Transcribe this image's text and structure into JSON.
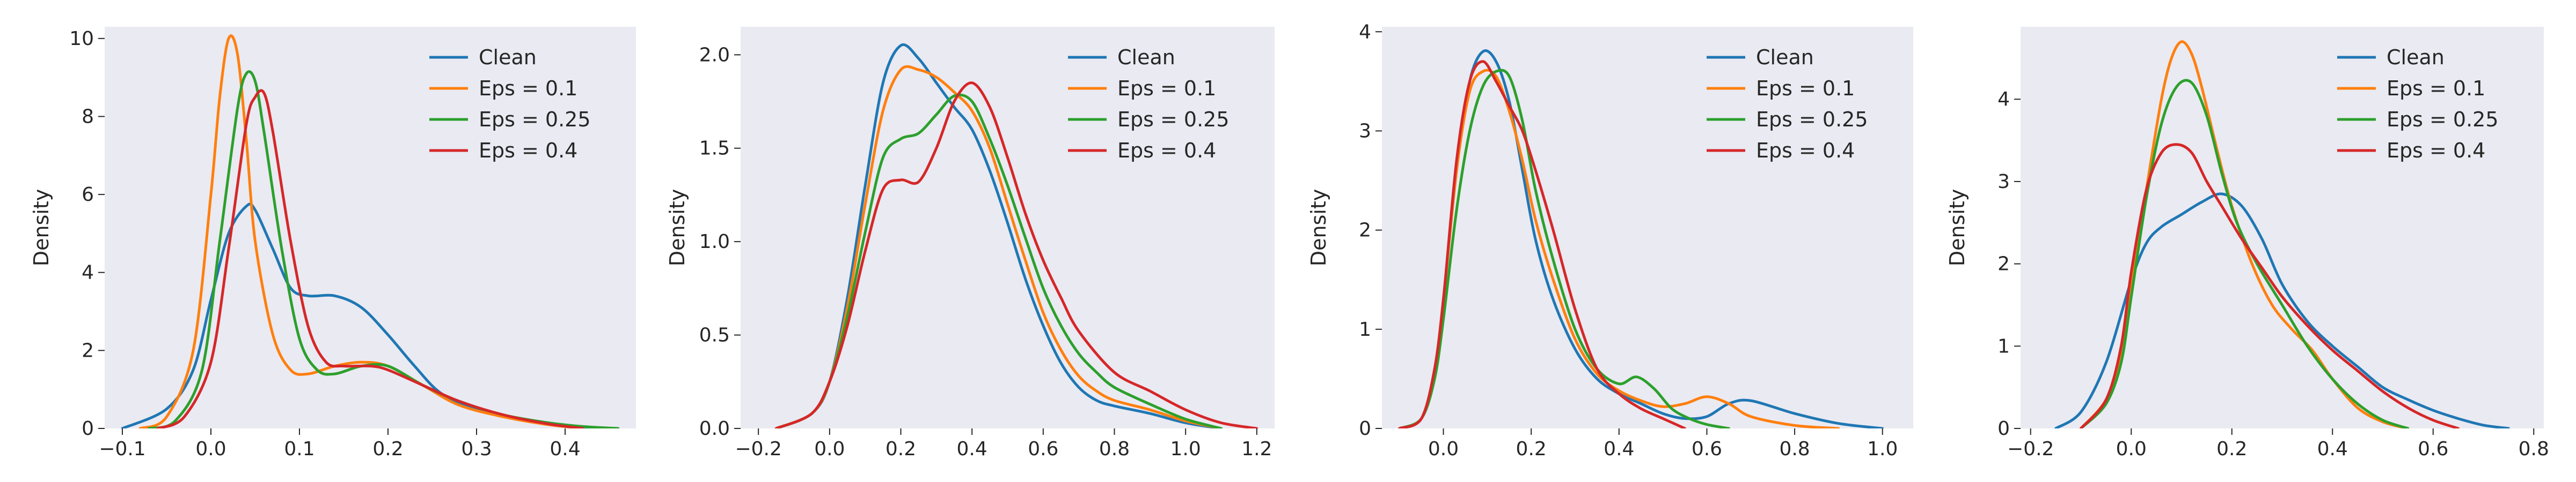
{
  "chart_data": [
    {
      "type": "line",
      "xlabel": "",
      "ylabel": "Density",
      "xlim": [
        -0.12,
        0.48
      ],
      "ylim": [
        0,
        10.3
      ],
      "xticks": [
        -0.1,
        0.0,
        0.1,
        0.2,
        0.3,
        0.4
      ],
      "xtick_labels": [
        "−0.1",
        "0.0",
        "0.1",
        "0.2",
        "0.3",
        "0.4"
      ],
      "yticks": [
        0,
        2,
        4,
        6,
        8,
        10
      ],
      "ytick_labels": [
        "0",
        "2",
        "4",
        "6",
        "8",
        "10"
      ],
      "grid": false,
      "legend": "top-right",
      "series": [
        {
          "name": "Clean",
          "color": "#1f77b4",
          "x": [
            -0.1,
            -0.05,
            -0.02,
            0.0,
            0.02,
            0.04,
            0.05,
            0.07,
            0.09,
            0.11,
            0.14,
            0.17,
            0.2,
            0.23,
            0.26,
            0.3,
            0.35,
            0.4,
            0.43
          ],
          "y": [
            0,
            0.5,
            1.5,
            3.3,
            5.0,
            5.7,
            5.6,
            4.6,
            3.6,
            3.4,
            3.4,
            3.1,
            2.4,
            1.6,
            0.9,
            0.5,
            0.25,
            0.05,
            0
          ]
        },
        {
          "name": "Eps = 0.1",
          "color": "#ff7f0e",
          "x": [
            -0.08,
            -0.05,
            -0.02,
            0.0,
            0.01,
            0.02,
            0.03,
            0.04,
            0.05,
            0.07,
            0.09,
            0.11,
            0.14,
            0.17,
            0.2,
            0.24,
            0.28,
            0.33,
            0.38,
            0.42
          ],
          "y": [
            0,
            0.3,
            2.0,
            6.0,
            8.5,
            10.0,
            9.6,
            7.4,
            4.8,
            2.4,
            1.5,
            1.4,
            1.6,
            1.7,
            1.6,
            1.1,
            0.6,
            0.3,
            0.1,
            0
          ]
        },
        {
          "name": "Eps = 0.25",
          "color": "#2ca02c",
          "x": [
            -0.07,
            -0.04,
            -0.01,
            0.01,
            0.03,
            0.04,
            0.05,
            0.06,
            0.08,
            0.1,
            0.12,
            0.14,
            0.17,
            0.2,
            0.24,
            0.28,
            0.33,
            0.38,
            0.42,
            0.46
          ],
          "y": [
            0,
            0.2,
            1.5,
            4.8,
            8.2,
            9.1,
            8.9,
            7.6,
            4.6,
            2.3,
            1.5,
            1.4,
            1.6,
            1.6,
            1.1,
            0.7,
            0.35,
            0.15,
            0.05,
            0
          ]
        },
        {
          "name": "Eps = 0.4",
          "color": "#d62728",
          "x": [
            -0.06,
            -0.03,
            0.0,
            0.02,
            0.04,
            0.05,
            0.06,
            0.07,
            0.09,
            0.11,
            0.13,
            0.15,
            0.18,
            0.2,
            0.24,
            0.28,
            0.33,
            0.38,
            0.42
          ],
          "y": [
            0,
            0.3,
            1.7,
            4.6,
            7.8,
            8.5,
            8.6,
            7.6,
            4.8,
            2.6,
            1.7,
            1.6,
            1.6,
            1.5,
            1.1,
            0.7,
            0.35,
            0.12,
            0
          ]
        }
      ]
    },
    {
      "type": "line",
      "xlabel": "",
      "ylabel": "Density",
      "xlim": [
        -0.25,
        1.25
      ],
      "ylim": [
        0,
        2.15
      ],
      "xticks": [
        -0.2,
        0.0,
        0.2,
        0.4,
        0.6,
        0.8,
        1.0,
        1.2
      ],
      "xtick_labels": [
        "−0.2",
        "0.0",
        "0.2",
        "0.4",
        "0.6",
        "0.8",
        "1.0",
        "1.2"
      ],
      "yticks": [
        0.0,
        0.5,
        1.0,
        1.5,
        2.0
      ],
      "ytick_labels": [
        "0.0",
        "0.5",
        "1.0",
        "1.5",
        "2.0"
      ],
      "grid": false,
      "legend": "top-right",
      "series": [
        {
          "name": "Clean",
          "color": "#1f77b4",
          "x": [
            -0.15,
            -0.05,
            0.0,
            0.05,
            0.1,
            0.15,
            0.2,
            0.25,
            0.3,
            0.35,
            0.4,
            0.45,
            0.5,
            0.55,
            0.6,
            0.65,
            0.7,
            0.75,
            0.8,
            0.9,
            1.0,
            1.1
          ],
          "y": [
            0,
            0.08,
            0.25,
            0.7,
            1.3,
            1.85,
            2.05,
            1.98,
            1.85,
            1.72,
            1.6,
            1.38,
            1.1,
            0.8,
            0.55,
            0.35,
            0.22,
            0.15,
            0.12,
            0.08,
            0.03,
            0
          ]
        },
        {
          "name": "Eps = 0.1",
          "color": "#ff7f0e",
          "x": [
            -0.15,
            -0.05,
            0.0,
            0.05,
            0.1,
            0.15,
            0.2,
            0.25,
            0.3,
            0.35,
            0.4,
            0.45,
            0.5,
            0.55,
            0.6,
            0.65,
            0.7,
            0.75,
            0.8,
            0.9,
            1.0,
            1.1
          ],
          "y": [
            0,
            0.08,
            0.25,
            0.65,
            1.2,
            1.7,
            1.92,
            1.92,
            1.88,
            1.8,
            1.7,
            1.5,
            1.2,
            0.9,
            0.62,
            0.42,
            0.28,
            0.2,
            0.15,
            0.1,
            0.04,
            0
          ]
        },
        {
          "name": "Eps = 0.25",
          "color": "#2ca02c",
          "x": [
            -0.15,
            -0.05,
            0.0,
            0.05,
            0.1,
            0.15,
            0.2,
            0.25,
            0.3,
            0.35,
            0.4,
            0.45,
            0.5,
            0.55,
            0.6,
            0.65,
            0.7,
            0.75,
            0.8,
            0.9,
            1.0,
            1.1
          ],
          "y": [
            0,
            0.08,
            0.25,
            0.6,
            1.05,
            1.45,
            1.55,
            1.58,
            1.68,
            1.78,
            1.75,
            1.55,
            1.3,
            1.02,
            0.75,
            0.55,
            0.4,
            0.3,
            0.22,
            0.13,
            0.05,
            0
          ]
        },
        {
          "name": "Eps = 0.4",
          "color": "#d62728",
          "x": [
            -0.15,
            -0.05,
            0.0,
            0.05,
            0.1,
            0.15,
            0.2,
            0.25,
            0.3,
            0.35,
            0.4,
            0.45,
            0.5,
            0.55,
            0.6,
            0.65,
            0.7,
            0.8,
            0.9,
            1.0,
            1.1,
            1.2
          ],
          "y": [
            0,
            0.08,
            0.25,
            0.55,
            0.95,
            1.28,
            1.33,
            1.32,
            1.5,
            1.75,
            1.85,
            1.72,
            1.45,
            1.15,
            0.9,
            0.7,
            0.52,
            0.3,
            0.2,
            0.1,
            0.03,
            0
          ]
        }
      ]
    },
    {
      "type": "line",
      "xlabel": "",
      "ylabel": "Density",
      "xlim": [
        -0.14,
        1.07
      ],
      "ylim": [
        0,
        4.05
      ],
      "xticks": [
        0.0,
        0.2,
        0.4,
        0.6,
        0.8,
        1.0
      ],
      "xtick_labels": [
        "0.0",
        "0.2",
        "0.4",
        "0.6",
        "0.8",
        "1.0"
      ],
      "yticks": [
        0,
        1,
        2,
        3,
        4
      ],
      "ytick_labels": [
        "0",
        "1",
        "2",
        "3",
        "4"
      ],
      "grid": false,
      "legend": "top-right",
      "series": [
        {
          "name": "Clean",
          "color": "#1f77b4",
          "x": [
            -0.1,
            -0.05,
            -0.02,
            0.0,
            0.03,
            0.06,
            0.09,
            0.12,
            0.15,
            0.18,
            0.21,
            0.25,
            0.3,
            0.35,
            0.4,
            0.45,
            0.5,
            0.55,
            0.6,
            0.65,
            0.7,
            0.8,
            0.9,
            1.0
          ],
          "y": [
            0,
            0.1,
            0.6,
            1.3,
            2.6,
            3.5,
            3.8,
            3.7,
            3.3,
            2.6,
            1.9,
            1.3,
            0.8,
            0.5,
            0.35,
            0.25,
            0.15,
            0.1,
            0.12,
            0.25,
            0.28,
            0.15,
            0.05,
            0
          ]
        },
        {
          "name": "Eps = 0.1",
          "color": "#ff7f0e",
          "x": [
            -0.1,
            -0.05,
            -0.02,
            0.0,
            0.03,
            0.06,
            0.09,
            0.12,
            0.15,
            0.18,
            0.21,
            0.25,
            0.3,
            0.35,
            0.4,
            0.45,
            0.5,
            0.55,
            0.6,
            0.65,
            0.7,
            0.8,
            0.9
          ],
          "y": [
            0,
            0.1,
            0.6,
            1.3,
            2.6,
            3.4,
            3.6,
            3.55,
            3.2,
            2.7,
            2.1,
            1.5,
            0.9,
            0.55,
            0.38,
            0.28,
            0.22,
            0.25,
            0.32,
            0.25,
            0.12,
            0.03,
            0
          ]
        },
        {
          "name": "Eps = 0.25",
          "color": "#2ca02c",
          "x": [
            -0.1,
            -0.05,
            -0.02,
            0.0,
            0.03,
            0.06,
            0.09,
            0.12,
            0.15,
            0.18,
            0.21,
            0.25,
            0.3,
            0.35,
            0.4,
            0.44,
            0.48,
            0.52,
            0.56,
            0.6,
            0.65
          ],
          "y": [
            0,
            0.1,
            0.5,
            1.1,
            2.2,
            3.0,
            3.45,
            3.6,
            3.55,
            3.1,
            2.4,
            1.7,
            1.0,
            0.6,
            0.45,
            0.52,
            0.4,
            0.2,
            0.1,
            0.04,
            0
          ]
        },
        {
          "name": "Eps = 0.4",
          "color": "#d62728",
          "x": [
            -0.1,
            -0.05,
            -0.02,
            0.0,
            0.03,
            0.06,
            0.09,
            0.12,
            0.15,
            0.18,
            0.21,
            0.25,
            0.3,
            0.35,
            0.4,
            0.45,
            0.5,
            0.55
          ],
          "y": [
            0,
            0.1,
            0.6,
            1.3,
            2.7,
            3.5,
            3.7,
            3.5,
            3.25,
            3.0,
            2.6,
            2.0,
            1.2,
            0.6,
            0.35,
            0.2,
            0.1,
            0
          ]
        }
      ]
    },
    {
      "type": "line",
      "xlabel": "",
      "ylabel": "Density",
      "xlim": [
        -0.22,
        0.82
      ],
      "ylim": [
        0,
        4.88
      ],
      "xticks": [
        -0.2,
        0.0,
        0.2,
        0.4,
        0.6,
        0.8
      ],
      "xtick_labels": [
        "−0.2",
        "0.0",
        "0.2",
        "0.4",
        "0.6",
        "0.8"
      ],
      "yticks": [
        0,
        1,
        2,
        3,
        4
      ],
      "ytick_labels": [
        "0",
        "1",
        "2",
        "3",
        "4"
      ],
      "grid": false,
      "legend": "top-right",
      "series": [
        {
          "name": "Clean",
          "color": "#1f77b4",
          "x": [
            -0.15,
            -0.1,
            -0.05,
            0.0,
            0.03,
            0.06,
            0.1,
            0.14,
            0.18,
            0.22,
            0.26,
            0.3,
            0.35,
            0.4,
            0.45,
            0.5,
            0.55,
            0.6,
            0.65,
            0.7,
            0.75
          ],
          "y": [
            0,
            0.2,
            0.8,
            1.8,
            2.25,
            2.45,
            2.6,
            2.75,
            2.85,
            2.7,
            2.3,
            1.75,
            1.3,
            1.0,
            0.75,
            0.5,
            0.35,
            0.22,
            0.12,
            0.04,
            0
          ]
        },
        {
          "name": "Eps = 0.1",
          "color": "#ff7f0e",
          "x": [
            -0.1,
            -0.05,
            -0.02,
            0.0,
            0.03,
            0.06,
            0.08,
            0.1,
            0.12,
            0.14,
            0.17,
            0.2,
            0.24,
            0.28,
            0.32,
            0.36,
            0.4,
            0.45,
            0.5,
            0.55
          ],
          "y": [
            0,
            0.35,
            0.9,
            1.7,
            2.9,
            4.0,
            4.5,
            4.7,
            4.55,
            4.15,
            3.4,
            2.7,
            2.0,
            1.5,
            1.2,
            0.95,
            0.6,
            0.25,
            0.08,
            0
          ]
        },
        {
          "name": "Eps = 0.25",
          "color": "#2ca02c",
          "x": [
            -0.1,
            -0.05,
            -0.02,
            0.0,
            0.03,
            0.06,
            0.09,
            0.12,
            0.15,
            0.18,
            0.21,
            0.25,
            0.3,
            0.35,
            0.4,
            0.45,
            0.5,
            0.55
          ],
          "y": [
            0,
            0.3,
            0.8,
            1.6,
            2.8,
            3.7,
            4.15,
            4.2,
            3.8,
            3.1,
            2.5,
            2.0,
            1.5,
            1.0,
            0.6,
            0.3,
            0.1,
            0
          ]
        },
        {
          "name": "Eps = 0.4",
          "color": "#d62728",
          "x": [
            -0.1,
            -0.05,
            -0.02,
            0.0,
            0.03,
            0.06,
            0.09,
            0.12,
            0.15,
            0.18,
            0.22,
            0.26,
            0.3,
            0.35,
            0.4,
            0.45,
            0.5,
            0.55,
            0.6,
            0.65
          ],
          "y": [
            0,
            0.35,
            1.0,
            1.9,
            2.9,
            3.35,
            3.45,
            3.35,
            3.0,
            2.7,
            2.3,
            1.95,
            1.6,
            1.25,
            0.95,
            0.7,
            0.45,
            0.25,
            0.1,
            0
          ]
        }
      ]
    }
  ]
}
